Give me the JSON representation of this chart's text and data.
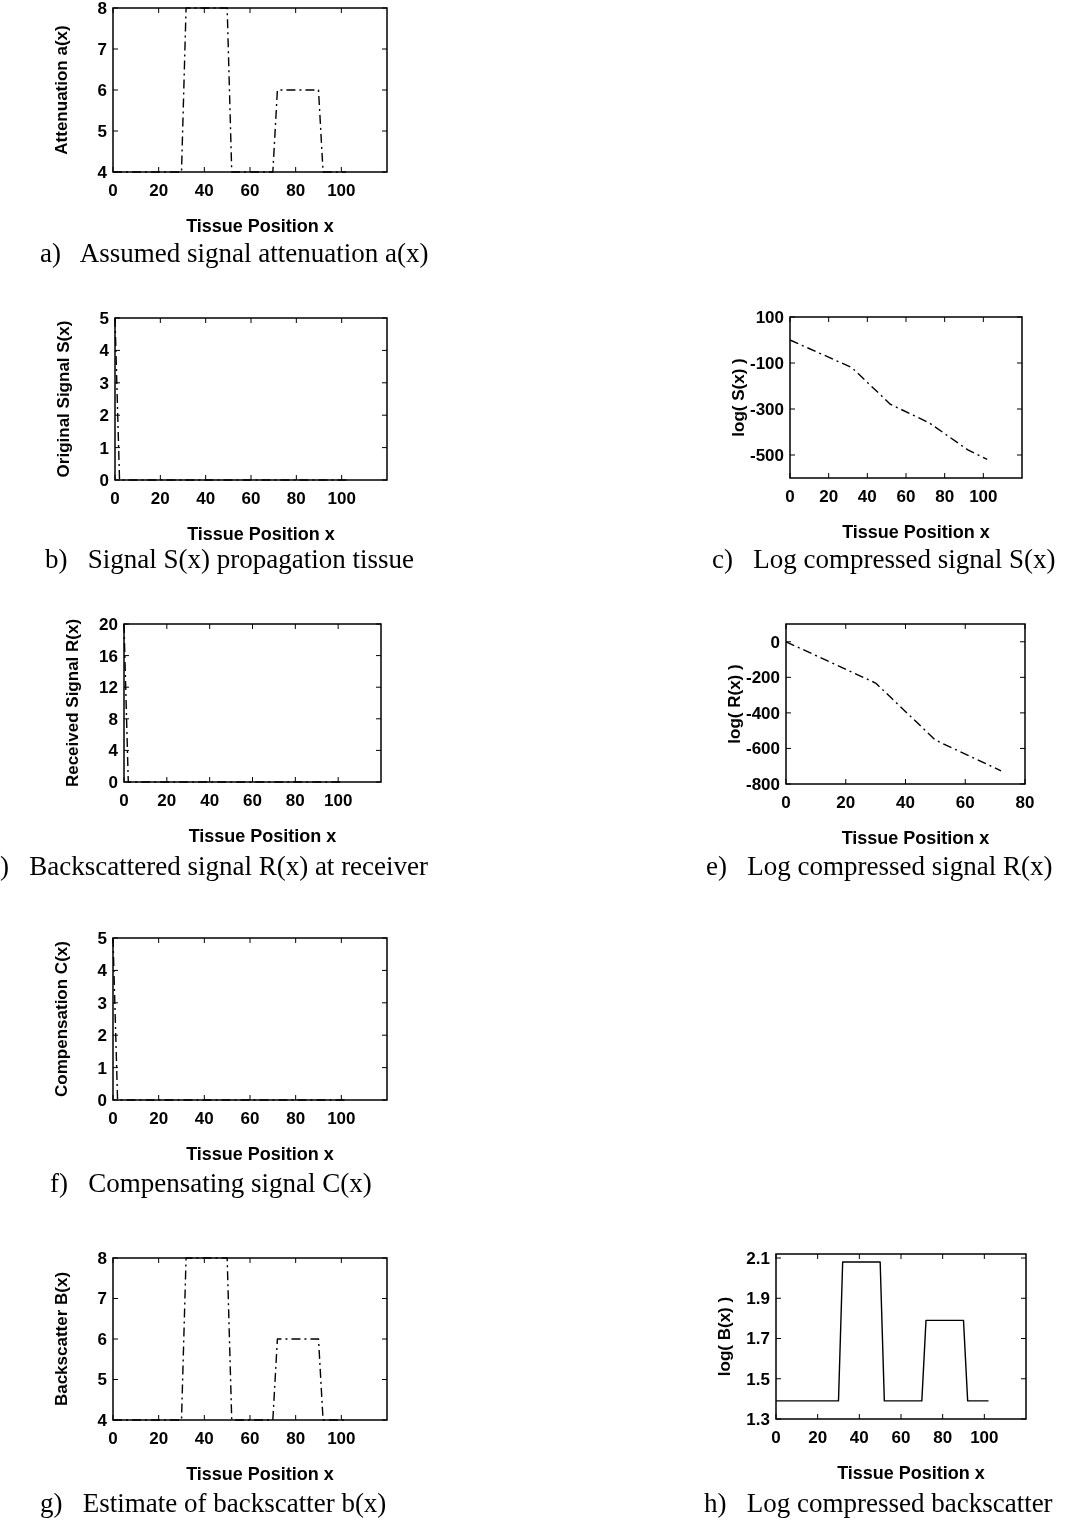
{
  "chart_data": [
    {
      "type": "line",
      "xlabel": "Tissue Position  x",
      "ylabel": "Attenuation  a(x)",
      "xlim": [
        0,
        120
      ],
      "ylim": [
        4,
        8
      ],
      "xticks": [
        0,
        20,
        40,
        60,
        80,
        100
      ],
      "yticks": [
        4,
        5,
        6,
        7,
        8
      ],
      "line_style": "dashed",
      "annotations": [
        "a)   Assumed signal attenuation a(x)"
      ],
      "series": [
        {
          "color": "#000000",
          "x": [
            0,
            30,
            32,
            50,
            52,
            70,
            72,
            90,
            92,
            102
          ],
          "values": [
            4,
            4,
            8,
            8,
            4,
            4,
            6,
            6,
            4,
            4
          ]
        }
      ]
    },
    {
      "type": "line",
      "xlabel": "Tissue Position  x",
      "ylabel": "Original Signal  S(x)",
      "xlim": [
        0,
        120
      ],
      "ylim": [
        0,
        5
      ],
      "xticks": [
        0,
        20,
        40,
        60,
        80,
        100
      ],
      "yticks": [
        0,
        1,
        2,
        3,
        4,
        5
      ],
      "line_style": "dashed",
      "annotations": [
        "b)   Signal S(x) propagation tissue"
      ],
      "series": [
        {
          "color": "#000000",
          "x": [
            0,
            2,
            102
          ],
          "values": [
            5,
            0,
            0
          ]
        }
      ]
    },
    {
      "type": "line",
      "xlabel": "Tissue Position  x",
      "ylabel": "log( S(x) )",
      "xlim": [
        0,
        120
      ],
      "ylim": [
        -600,
        100
      ],
      "xticks": [
        0,
        20,
        40,
        60,
        80,
        100
      ],
      "yticks": [
        -500,
        -300,
        -100,
        100
      ],
      "line_style": "dashed",
      "annotations": [
        "c)   Log compressed signal S(x)"
      ],
      "series": [
        {
          "color": "#000000",
          "x": [
            0,
            32,
            52,
            72,
            92,
            102
          ],
          "values": [
            0,
            -120,
            -280,
            -360,
            -478,
            -519
          ]
        }
      ]
    },
    {
      "type": "line",
      "xlabel": "Tissue Position  x",
      "ylabel": "Received Signal  R(x)",
      "xlim": [
        0,
        120
      ],
      "ylim": [
        0,
        20
      ],
      "xticks": [
        0,
        20,
        40,
        60,
        80,
        100
      ],
      "yticks": [
        0,
        4,
        8,
        12,
        16,
        20
      ],
      "line_style": "dashed",
      "annotations": [
        ")   Backscattered signal R(x) at receiver"
      ],
      "series": [
        {
          "color": "#000000",
          "x": [
            0,
            2,
            102
          ],
          "values": [
            20,
            0,
            0
          ]
        }
      ]
    },
    {
      "type": "line",
      "xlabel": "Tissue Position  x",
      "ylabel": "log( R(x) )",
      "xlim": [
        0,
        80
      ],
      "ylim": [
        -800,
        100
      ],
      "xticks": [
        0,
        20,
        40,
        60,
        80
      ],
      "yticks": [
        -800,
        -600,
        -400,
        -200,
        0
      ],
      "line_style": "dashed",
      "annotations": [
        "e)   Log compressed signal R(x)"
      ],
      "series": [
        {
          "color": "#000000",
          "x": [
            0,
            30,
            50,
            72
          ],
          "values": [
            0,
            -232,
            -553,
            -726
          ]
        }
      ]
    },
    {
      "type": "line",
      "xlabel": "Tissue Position  x",
      "ylabel": "Compensation  C(x)",
      "xlim": [
        0,
        120
      ],
      "ylim": [
        0,
        5
      ],
      "xticks": [
        0,
        20,
        40,
        60,
        80,
        100
      ],
      "yticks": [
        0,
        1,
        2,
        3,
        4,
        5
      ],
      "line_style": "dashed",
      "annotations": [
        "f)   Compensating signal C(x)"
      ],
      "series": [
        {
          "color": "#000000",
          "x": [
            0,
            2,
            102
          ],
          "values": [
            5,
            0,
            0
          ]
        }
      ]
    },
    {
      "type": "line",
      "xlabel": "Tissue Position  x",
      "ylabel": "Backscatter  B(x)",
      "xlim": [
        0,
        120
      ],
      "ylim": [
        4,
        8
      ],
      "xticks": [
        0,
        20,
        40,
        60,
        80,
        100
      ],
      "yticks": [
        4,
        5,
        6,
        7,
        8
      ],
      "line_style": "dashed",
      "annotations": [
        "g)   Estimate of backscatter b(x)"
      ],
      "series": [
        {
          "color": "#000000",
          "x": [
            0,
            30,
            32,
            50,
            52,
            70,
            72,
            90,
            92,
            102
          ],
          "values": [
            4,
            4,
            8,
            8,
            4,
            4,
            6,
            6,
            4,
            4
          ]
        }
      ]
    },
    {
      "type": "line",
      "xlabel": "Tissue Position  x",
      "ylabel": "log( B(x) )",
      "xlim": [
        0,
        120
      ],
      "ylim": [
        1.3,
        2.12
      ],
      "xticks": [
        0,
        20,
        40,
        60,
        80,
        100
      ],
      "yticks": [
        1.3,
        1.5,
        1.7,
        1.9,
        2.1
      ],
      "line_style": "solid",
      "annotations": [
        "h)   Log compressed backscatter"
      ],
      "series": [
        {
          "color": "#000000",
          "x": [
            0,
            30,
            32,
            50,
            52,
            70,
            72,
            90,
            92,
            102
          ],
          "values": [
            1.39,
            1.39,
            2.08,
            2.08,
            1.39,
            1.39,
            1.79,
            1.79,
            1.39,
            1.39
          ]
        }
      ]
    }
  ]
}
